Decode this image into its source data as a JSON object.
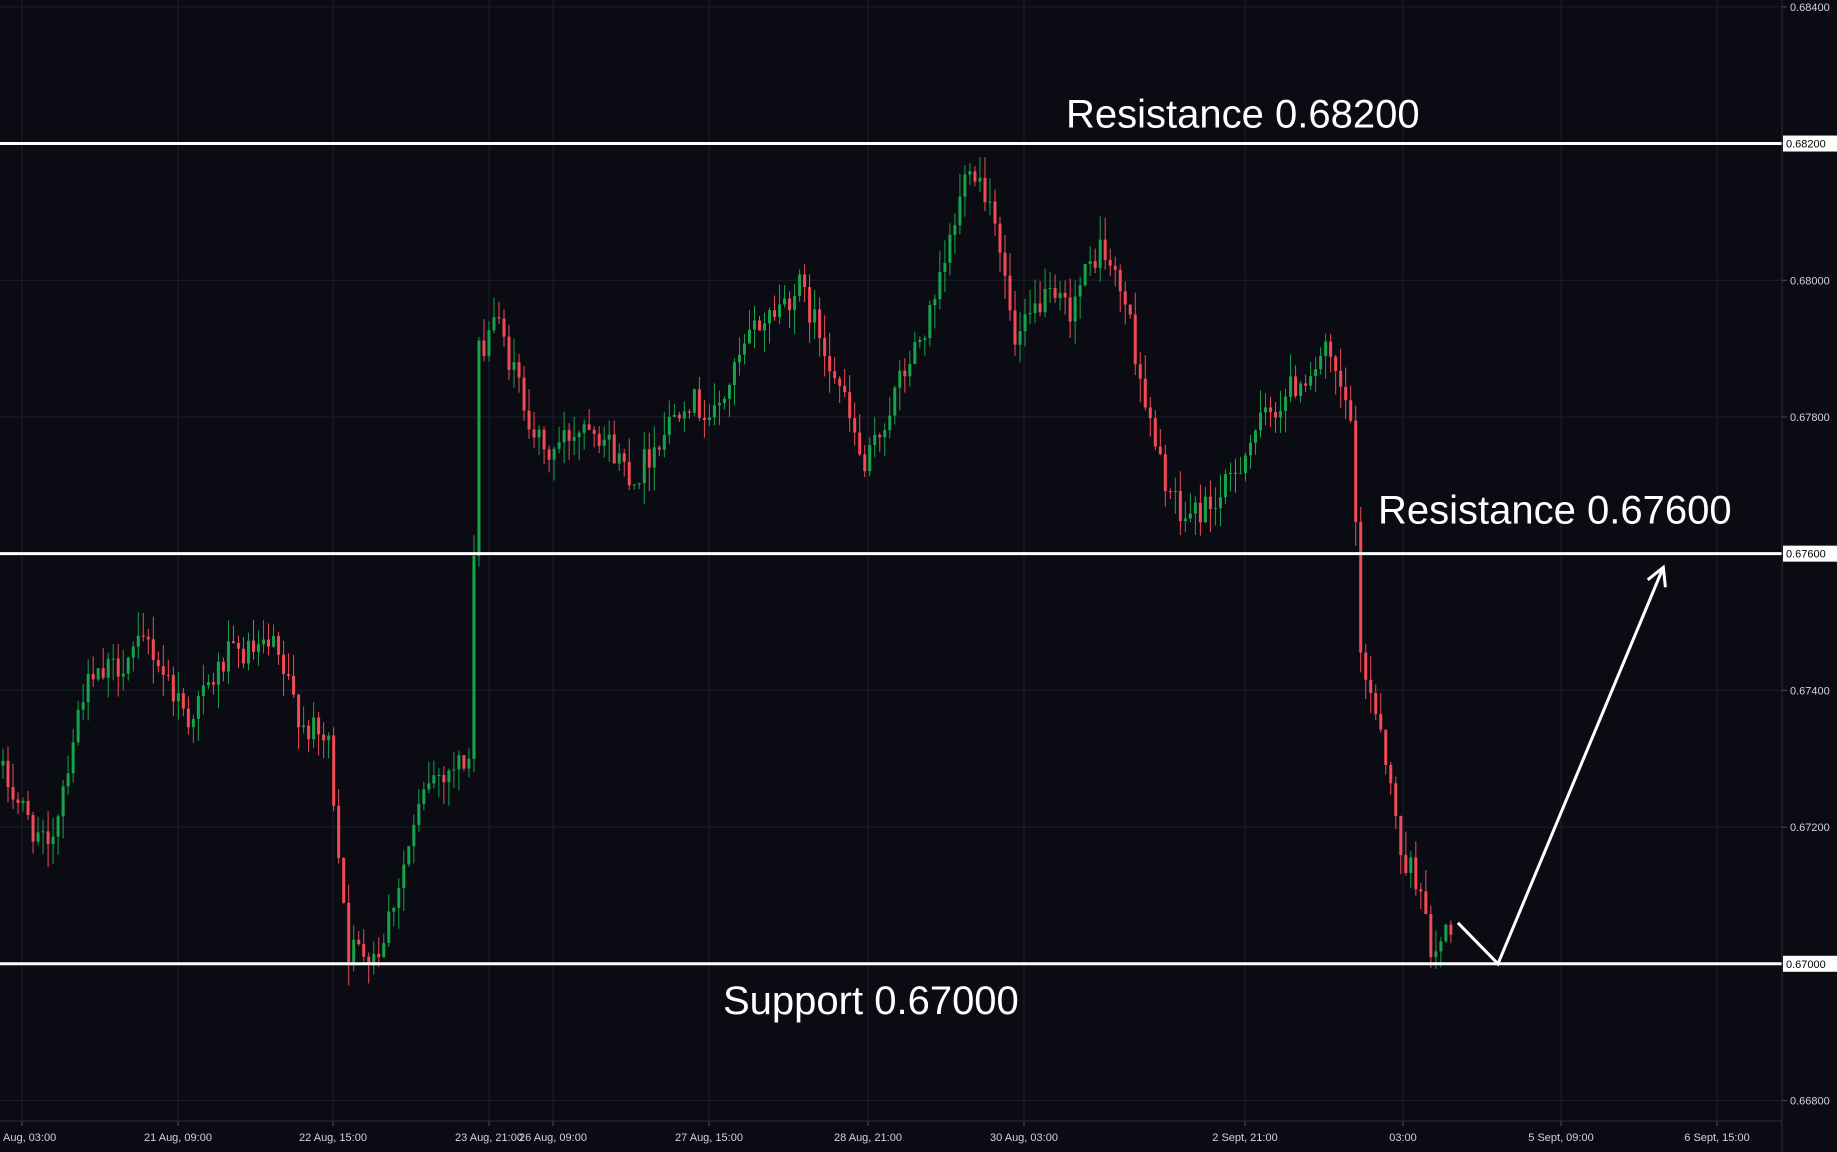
{
  "colors": {
    "background": "#0b0b14",
    "grid": "#1c1f2b",
    "up": "#17a34a",
    "down": "#ef4b54",
    "level_line": "#ffffff",
    "axis_text": "#d1d4dc"
  },
  "chart_data": {
    "type": "candlestick",
    "title": "",
    "xlabel": "",
    "ylabel": "",
    "ylim": [
      0.6677,
      0.6841
    ],
    "grid": true,
    "y_ticks": [
      "0.68400",
      "0.68200",
      "0.68000",
      "0.67800",
      "0.67600",
      "0.67400",
      "0.67200",
      "0.67000",
      "0.66800"
    ],
    "x_ticks": [
      "Aug, 03:00",
      "21 Aug, 09:00",
      "22 Aug, 15:00",
      "23 Aug, 21:00",
      "26 Aug, 09:00",
      "27 Aug, 15:00",
      "28 Aug, 21:00",
      "30 Aug, 03:00",
      "2 Sept, 21:00",
      "03:00",
      "5 Sept, 09:00",
      "6 Sept, 15:00"
    ],
    "levels": [
      {
        "name": "Resistance",
        "value": 0.682,
        "label": "Resistance 0.68200",
        "tag": "0.68200"
      },
      {
        "name": "Resistance",
        "value": 0.676,
        "label": "Resistance 0.67600",
        "tag": "0.67600"
      },
      {
        "name": "Support",
        "value": 0.67,
        "label": "Support 0.67000",
        "tag": "0.67000"
      }
    ],
    "projection": {
      "description": "projected path",
      "points": [
        {
          "bar": 290,
          "price": 0.6706
        },
        {
          "bar": 298,
          "price": 0.67
        },
        {
          "bar": 331,
          "price": 0.6758
        }
      ]
    },
    "trend_anchors": [
      [
        0,
        0.6729
      ],
      [
        10,
        0.6716
      ],
      [
        17,
        0.674
      ],
      [
        30,
        0.6747
      ],
      [
        38,
        0.6736
      ],
      [
        46,
        0.6745
      ],
      [
        55,
        0.6746
      ],
      [
        61,
        0.6735
      ],
      [
        66,
        0.6732
      ],
      [
        70,
        0.6702
      ],
      [
        76,
        0.6702
      ],
      [
        86,
        0.6727
      ],
      [
        94,
        0.673
      ],
      [
        96,
        0.6789
      ],
      [
        99,
        0.6795
      ],
      [
        109,
        0.6774
      ],
      [
        118,
        0.678
      ],
      [
        127,
        0.6771
      ],
      [
        137,
        0.6783
      ],
      [
        143,
        0.678
      ],
      [
        151,
        0.6793
      ],
      [
        160,
        0.6799
      ],
      [
        167,
        0.6787
      ],
      [
        173,
        0.6772
      ],
      [
        180,
        0.6785
      ],
      [
        187,
        0.6796
      ],
      [
        194,
        0.6818
      ],
      [
        199,
        0.681
      ],
      [
        203,
        0.679
      ],
      [
        208,
        0.6797
      ],
      [
        214,
        0.6796
      ],
      [
        220,
        0.6805
      ],
      [
        225,
        0.6797
      ],
      [
        231,
        0.6775
      ],
      [
        236,
        0.6765
      ],
      [
        244,
        0.6768
      ],
      [
        251,
        0.6778
      ],
      [
        258,
        0.6784
      ],
      [
        265,
        0.6789
      ],
      [
        270,
        0.678
      ],
      [
        272,
        0.6745
      ],
      [
        276,
        0.6735
      ],
      [
        280,
        0.6716
      ],
      [
        284,
        0.6712
      ],
      [
        286,
        0.67
      ],
      [
        290,
        0.6706
      ]
    ],
    "bar_count": 290
  }
}
